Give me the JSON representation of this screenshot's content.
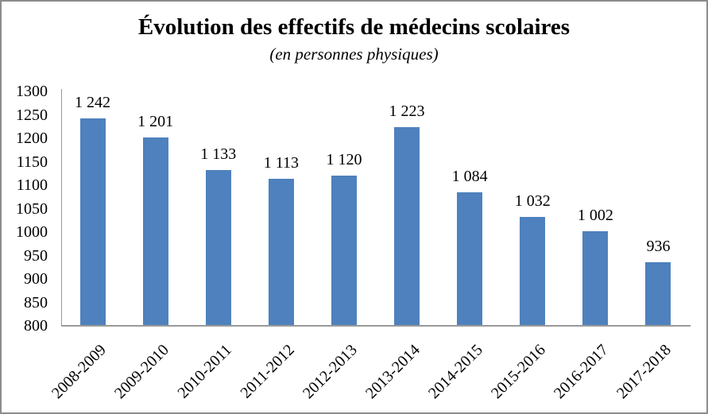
{
  "frame": {
    "background_color": "#ffffff",
    "border_color": "#8c8c8c"
  },
  "chart_data": {
    "type": "bar",
    "title": "Évolution des effectifs de médecins scolaires",
    "subtitle": "(en personnes physiques)",
    "categories": [
      "2008-2009",
      "2009-2010",
      "2010-2011",
      "2011-2012",
      "2012-2013",
      "2013-2014",
      "2014-2015",
      "2015-2016",
      "2016-2017",
      "2017-2018"
    ],
    "values": [
      1242,
      1201,
      1133,
      1113,
      1120,
      1223,
      1084,
      1032,
      1002,
      936
    ],
    "value_labels": [
      "1 242",
      "1 201",
      "1 133",
      "1 113",
      "1 120",
      "1 223",
      "1 084",
      "1 032",
      "1 002",
      "936"
    ],
    "yticks": [
      800,
      850,
      900,
      950,
      1000,
      1050,
      1100,
      1150,
      1200,
      1250,
      1300
    ],
    "ylim": [
      800,
      1300
    ],
    "xlabel": "",
    "ylabel": "",
    "grid": false,
    "legend": "none",
    "bar_color": "#4e81bd",
    "axis_color": "#9a9a9a",
    "text_color": "#000000",
    "x_labels_rotation_deg": -45
  }
}
